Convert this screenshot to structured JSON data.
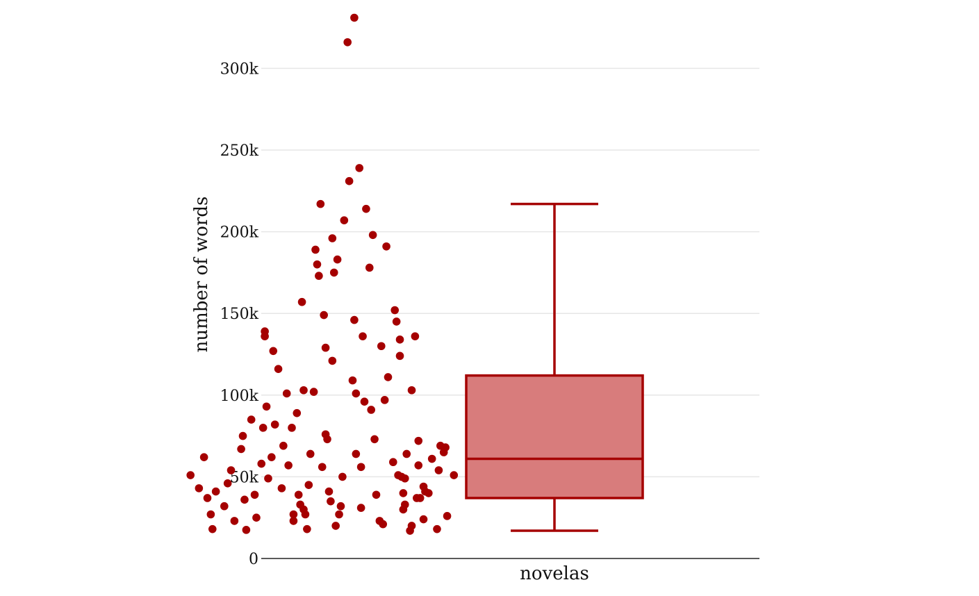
{
  "chart_data": {
    "type": "box",
    "title": "",
    "xlabel": "",
    "ylabel": "number of words",
    "categories": [
      "novelas"
    ],
    "ylim": [
      0,
      330000
    ],
    "yticks": [
      0,
      50000,
      100000,
      150000,
      200000,
      250000,
      300000
    ],
    "ytick_labels": [
      "0",
      "50k",
      "100k",
      "150k",
      "200k",
      "250k",
      "300k"
    ],
    "grid": true,
    "legend": "none",
    "colors": {
      "marker": "#a50000",
      "box_fill": "#d87c7c",
      "box_line": "#a50000",
      "grid": "#e6e6e6",
      "axis": "#222222"
    },
    "box": {
      "category": "novelas",
      "min": 17000,
      "q1": 37000,
      "median": 61000,
      "q3": 112000,
      "max": 217000
    },
    "points": [
      {
        "jitter": -0.6,
        "y": 51000
      },
      {
        "jitter": -0.55,
        "y": 43000
      },
      {
        "jitter": -0.52,
        "y": 62000
      },
      {
        "jitter": -0.5,
        "y": 37000
      },
      {
        "jitter": -0.48,
        "y": 27000
      },
      {
        "jitter": -0.47,
        "y": 18000
      },
      {
        "jitter": -0.45,
        "y": 41000
      },
      {
        "jitter": -0.4,
        "y": 32000
      },
      {
        "jitter": -0.38,
        "y": 46000
      },
      {
        "jitter": -0.36,
        "y": 54000
      },
      {
        "jitter": -0.34,
        "y": 23000
      },
      {
        "jitter": -0.3,
        "y": 67000
      },
      {
        "jitter": -0.29,
        "y": 75000
      },
      {
        "jitter": -0.28,
        "y": 36000
      },
      {
        "jitter": -0.27,
        "y": 17500
      },
      {
        "jitter": -0.24,
        "y": 85000
      },
      {
        "jitter": -0.22,
        "y": 39000
      },
      {
        "jitter": -0.21,
        "y": 25000
      },
      {
        "jitter": -0.18,
        "y": 58000
      },
      {
        "jitter": -0.17,
        "y": 80000
      },
      {
        "jitter": -0.16,
        "y": 139000
      },
      {
        "jitter": -0.16,
        "y": 136000
      },
      {
        "jitter": -0.15,
        "y": 93000
      },
      {
        "jitter": -0.14,
        "y": 49000
      },
      {
        "jitter": -0.12,
        "y": 62000
      },
      {
        "jitter": -0.11,
        "y": 127000
      },
      {
        "jitter": -0.1,
        "y": 82000
      },
      {
        "jitter": -0.08,
        "y": 116000
      },
      {
        "jitter": -0.06,
        "y": 43000
      },
      {
        "jitter": -0.05,
        "y": 69000
      },
      {
        "jitter": -0.03,
        "y": 101000
      },
      {
        "jitter": -0.02,
        "y": 57000
      },
      {
        "jitter": 0.0,
        "y": 80000
      },
      {
        "jitter": 0.01,
        "y": 27000
      },
      {
        "jitter": 0.01,
        "y": 23000
      },
      {
        "jitter": 0.03,
        "y": 89000
      },
      {
        "jitter": 0.04,
        "y": 39000
      },
      {
        "jitter": 0.05,
        "y": 33000
      },
      {
        "jitter": 0.06,
        "y": 157000
      },
      {
        "jitter": 0.07,
        "y": 30000
      },
      {
        "jitter": 0.07,
        "y": 103000
      },
      {
        "jitter": 0.08,
        "y": 27000
      },
      {
        "jitter": 0.09,
        "y": 18000
      },
      {
        "jitter": 0.1,
        "y": 45000
      },
      {
        "jitter": 0.11,
        "y": 64000
      },
      {
        "jitter": 0.13,
        "y": 102000
      },
      {
        "jitter": 0.14,
        "y": 189000
      },
      {
        "jitter": 0.15,
        "y": 180000
      },
      {
        "jitter": 0.16,
        "y": 173000
      },
      {
        "jitter": 0.17,
        "y": 217000
      },
      {
        "jitter": 0.18,
        "y": 56000
      },
      {
        "jitter": 0.19,
        "y": 149000
      },
      {
        "jitter": 0.2,
        "y": 129000
      },
      {
        "jitter": 0.2,
        "y": 76000
      },
      {
        "jitter": 0.21,
        "y": 73000
      },
      {
        "jitter": 0.22,
        "y": 41000
      },
      {
        "jitter": 0.23,
        "y": 35000
      },
      {
        "jitter": 0.24,
        "y": 121000
      },
      {
        "jitter": 0.24,
        "y": 196000
      },
      {
        "jitter": 0.25,
        "y": 175000
      },
      {
        "jitter": 0.26,
        "y": 20000
      },
      {
        "jitter": 0.27,
        "y": 183000
      },
      {
        "jitter": 0.28,
        "y": 27000
      },
      {
        "jitter": 0.29,
        "y": 32000
      },
      {
        "jitter": 0.3,
        "y": 50000
      },
      {
        "jitter": 0.31,
        "y": 207000
      },
      {
        "jitter": 0.33,
        "y": 316000
      },
      {
        "jitter": 0.34,
        "y": 231000
      },
      {
        "jitter": 0.36,
        "y": 109000
      },
      {
        "jitter": 0.37,
        "y": 331000
      },
      {
        "jitter": 0.37,
        "y": 146000
      },
      {
        "jitter": 0.38,
        "y": 101000
      },
      {
        "jitter": 0.38,
        "y": 64000
      },
      {
        "jitter": 0.4,
        "y": 239000
      },
      {
        "jitter": 0.41,
        "y": 31000
      },
      {
        "jitter": 0.41,
        "y": 56000
      },
      {
        "jitter": 0.42,
        "y": 136000
      },
      {
        "jitter": 0.43,
        "y": 96000
      },
      {
        "jitter": 0.44,
        "y": 214000
      },
      {
        "jitter": 0.46,
        "y": 178000
      },
      {
        "jitter": 0.47,
        "y": 91000
      },
      {
        "jitter": 0.48,
        "y": 198000
      },
      {
        "jitter": 0.49,
        "y": 73000
      },
      {
        "jitter": 0.5,
        "y": 39000
      },
      {
        "jitter": 0.52,
        "y": 23000
      },
      {
        "jitter": 0.53,
        "y": 130000
      },
      {
        "jitter": 0.54,
        "y": 21000
      },
      {
        "jitter": 0.55,
        "y": 97000
      },
      {
        "jitter": 0.56,
        "y": 191000
      },
      {
        "jitter": 0.57,
        "y": 111000
      },
      {
        "jitter": 0.6,
        "y": 59000
      },
      {
        "jitter": 0.61,
        "y": 152000
      },
      {
        "jitter": 0.62,
        "y": 145000
      },
      {
        "jitter": 0.63,
        "y": 51000
      },
      {
        "jitter": 0.64,
        "y": 134000
      },
      {
        "jitter": 0.64,
        "y": 124000
      },
      {
        "jitter": 0.65,
        "y": 50000
      },
      {
        "jitter": 0.66,
        "y": 30000
      },
      {
        "jitter": 0.66,
        "y": 40000
      },
      {
        "jitter": 0.67,
        "y": 49000
      },
      {
        "jitter": 0.67,
        "y": 33000
      },
      {
        "jitter": 0.68,
        "y": 64000
      },
      {
        "jitter": 0.7,
        "y": 17000
      },
      {
        "jitter": 0.71,
        "y": 103000
      },
      {
        "jitter": 0.71,
        "y": 20000
      },
      {
        "jitter": 0.73,
        "y": 136000
      },
      {
        "jitter": 0.74,
        "y": 37000
      },
      {
        "jitter": 0.75,
        "y": 72000
      },
      {
        "jitter": 0.75,
        "y": 57000
      },
      {
        "jitter": 0.76,
        "y": 37000
      },
      {
        "jitter": 0.78,
        "y": 44000
      },
      {
        "jitter": 0.78,
        "y": 24000
      },
      {
        "jitter": 0.79,
        "y": 41000
      },
      {
        "jitter": 0.81,
        "y": 40000
      },
      {
        "jitter": 0.83,
        "y": 61000
      },
      {
        "jitter": 0.86,
        "y": 18000
      },
      {
        "jitter": 0.87,
        "y": 54000
      },
      {
        "jitter": 0.88,
        "y": 69000
      },
      {
        "jitter": 0.9,
        "y": 65000
      },
      {
        "jitter": 0.91,
        "y": 68000
      },
      {
        "jitter": 0.92,
        "y": 26000
      },
      {
        "jitter": 0.96,
        "y": 51000
      }
    ]
  }
}
